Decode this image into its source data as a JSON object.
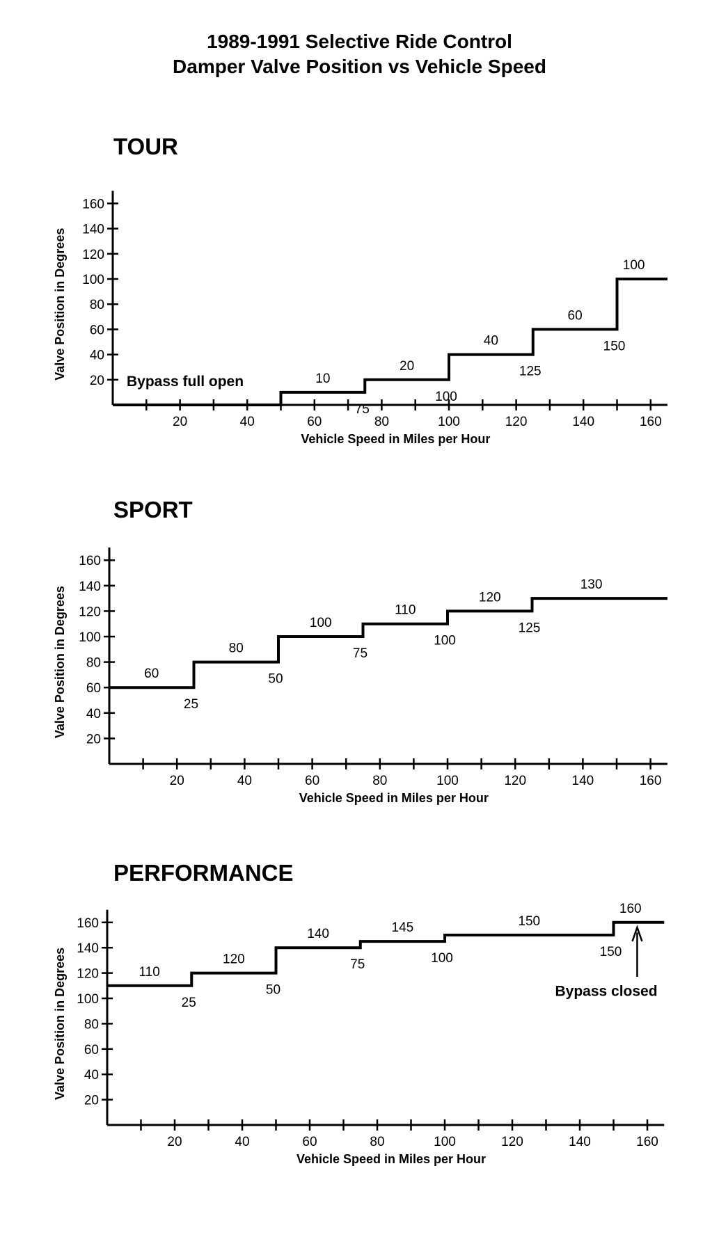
{
  "title_line1": "1989-1991 Selective Ride Control",
  "title_line2": "Damper Valve Position vs Vehicle Speed",
  "chart_data": [
    {
      "type": "line",
      "step": true,
      "title": "TOUR",
      "xlabel": "Vehicle Speed in Miles per Hour",
      "ylabel": "Valve Position in Degrees",
      "xlim": [
        0,
        165
      ],
      "ylim": [
        0,
        170
      ],
      "xticks": [
        20,
        40,
        60,
        80,
        100,
        120,
        140,
        160
      ],
      "yticks": [
        20,
        40,
        60,
        80,
        100,
        120,
        140,
        160
      ],
      "steps": [
        {
          "from": 0,
          "to": 50,
          "value": 0
        },
        {
          "from": 50,
          "to": 75,
          "value": 10
        },
        {
          "from": 75,
          "to": 100,
          "value": 20
        },
        {
          "from": 100,
          "to": 125,
          "value": 40
        },
        {
          "from": 125,
          "to": 150,
          "value": 60
        },
        {
          "from": 150,
          "to": 165,
          "value": 100
        }
      ],
      "value_labels": [
        "10",
        "20",
        "40",
        "60",
        "100"
      ],
      "breakpoint_labels": [
        "75",
        "100",
        "125",
        "150"
      ],
      "annotations": [
        "Bypass full open"
      ]
    },
    {
      "type": "line",
      "step": true,
      "title": "SPORT",
      "xlabel": "Vehicle Speed in Miles per Hour",
      "ylabel": "Valve Position in Degrees",
      "xlim": [
        0,
        165
      ],
      "ylim": [
        0,
        170
      ],
      "xticks": [
        20,
        40,
        60,
        80,
        100,
        120,
        140,
        160
      ],
      "yticks": [
        20,
        40,
        60,
        80,
        100,
        120,
        140,
        160
      ],
      "steps": [
        {
          "from": 0,
          "to": 25,
          "value": 60
        },
        {
          "from": 25,
          "to": 50,
          "value": 80
        },
        {
          "from": 50,
          "to": 75,
          "value": 100
        },
        {
          "from": 75,
          "to": 100,
          "value": 110
        },
        {
          "from": 100,
          "to": 125,
          "value": 120
        },
        {
          "from": 125,
          "to": 165,
          "value": 130
        }
      ],
      "value_labels": [
        "60",
        "80",
        "100",
        "110",
        "120",
        "130"
      ],
      "breakpoint_labels": [
        "25",
        "50",
        "75",
        "100",
        "125"
      ],
      "annotations": []
    },
    {
      "type": "line",
      "step": true,
      "title": "PERFORMANCE",
      "xlabel": "Vehicle Speed in Miles per Hour",
      "ylabel": "Valve Position in Degrees",
      "xlim": [
        0,
        165
      ],
      "ylim": [
        0,
        170
      ],
      "xticks": [
        20,
        40,
        60,
        80,
        100,
        120,
        140,
        160
      ],
      "yticks": [
        20,
        40,
        60,
        80,
        100,
        120,
        140,
        160
      ],
      "steps": [
        {
          "from": 0,
          "to": 25,
          "value": 110
        },
        {
          "from": 25,
          "to": 50,
          "value": 120
        },
        {
          "from": 50,
          "to": 75,
          "value": 140
        },
        {
          "from": 75,
          "to": 100,
          "value": 145
        },
        {
          "from": 100,
          "to": 150,
          "value": 150
        },
        {
          "from": 150,
          "to": 165,
          "value": 160
        }
      ],
      "value_labels": [
        "110",
        "120",
        "140",
        "145",
        "150",
        "160"
      ],
      "breakpoint_labels": [
        "25",
        "50",
        "75",
        "100",
        "150"
      ],
      "annotations": [
        "Bypass closed"
      ]
    }
  ]
}
